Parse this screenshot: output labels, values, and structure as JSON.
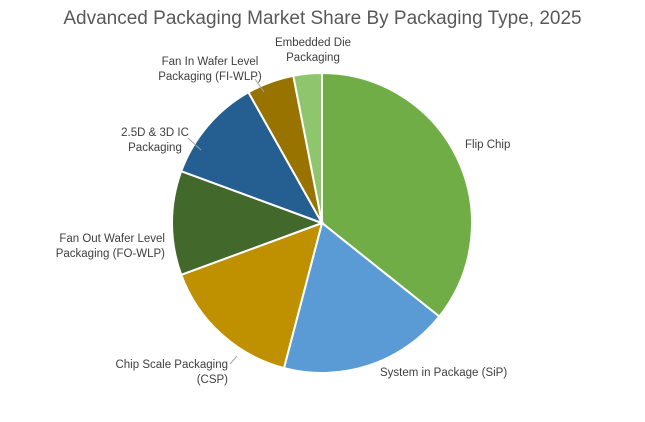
{
  "chart_data": {
    "type": "pie",
    "title": "Advanced Packaging Market Share By Packaging Type, 2025",
    "categories": [
      "Flip Chip",
      "System in Package (SiP)",
      "Chip Scale Packaging (CSP)",
      "Fan Out Wafer Level Packaging (FO-WLP)",
      "2.5D & 3D IC Packaging",
      "Fan In Wafer Level Packaging (FI-WLP)",
      "Embedded Die Packaging"
    ],
    "values": [
      35,
      18,
      15,
      11,
      11,
      5,
      3
    ],
    "colors": [
      "#70ad47",
      "#5b9bd5",
      "#bf9000",
      "#43682b",
      "#255e91",
      "#997300",
      "#8fc66d"
    ],
    "legend": "none",
    "labels": [
      {
        "lines": [
          "Flip Chip"
        ]
      },
      {
        "lines": [
          "System in Package (SiP)"
        ]
      },
      {
        "lines": [
          "Chip Scale Packaging",
          "(CSP)"
        ]
      },
      {
        "lines": [
          "Fan Out Wafer Level",
          "Packaging (FO-WLP)"
        ]
      },
      {
        "lines": [
          "2.5D & 3D IC",
          "Packaging"
        ]
      },
      {
        "lines": [
          "Fan In Wafer Level",
          "Packaging (FI-WLP)"
        ]
      },
      {
        "lines": [
          "Embedded Die",
          "Packaging"
        ]
      }
    ]
  }
}
